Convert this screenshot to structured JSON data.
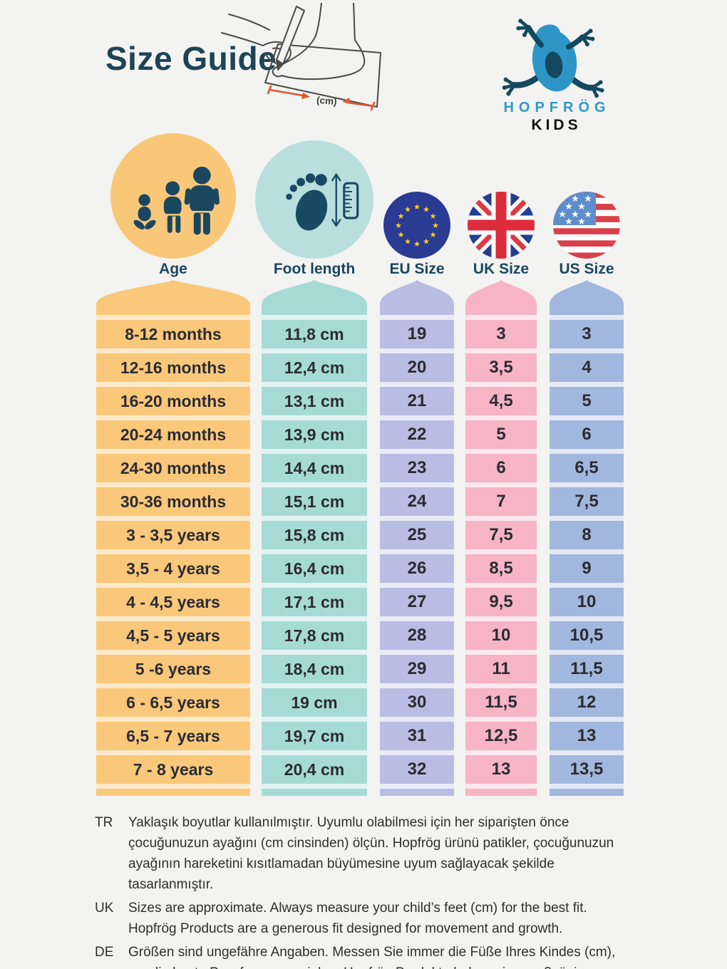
{
  "page": {
    "title": "Size Guide",
    "background": "#F3F3F1",
    "text_navy": "#1B4660"
  },
  "brand": {
    "name": "HOPFRÖG",
    "sub": "KIDS",
    "name_color": "#2E9AC7",
    "frog_icon": "frog-logo-icon"
  },
  "illustration": {
    "label": "(cm)",
    "accent_color": "#E2572F",
    "icon": "foot-tracing-illustration"
  },
  "columns": [
    {
      "id": "age",
      "label": "Age",
      "icon": "family-icon",
      "color": "#FAC87A",
      "tint": "#FCEACB",
      "icon_bg": "#F8C878"
    },
    {
      "id": "foot",
      "label": "Foot length",
      "icon": "foot-ruler-icon",
      "color": "#A6DBD5",
      "tint": "#E2F3F1",
      "icon_bg": "#B8DFDD"
    },
    {
      "id": "eu",
      "label": "EU Size",
      "icon": "eu-flag-icon",
      "color": "#B9BDE3",
      "tint": "#EAEBF7"
    },
    {
      "id": "uk",
      "label": "UK Size",
      "icon": "uk-flag-icon",
      "color": "#F6B4C6",
      "tint": "#FCE8EE"
    },
    {
      "id": "us",
      "label": "US Size",
      "icon": "us-flag-icon",
      "color": "#A2B7DD",
      "tint": "#E3E9F5"
    }
  ],
  "chart_data": {
    "type": "table",
    "title": "Size Guide",
    "columns": [
      "Age",
      "Foot length",
      "EU Size",
      "UK Size",
      "US Size"
    ],
    "rows": [
      [
        "8-12 months",
        "11,8 cm",
        "19",
        "3",
        "3"
      ],
      [
        "12-16 months",
        "12,4 cm",
        "20",
        "3,5",
        "4"
      ],
      [
        "16-20 months",
        "13,1 cm",
        "21",
        "4,5",
        "5"
      ],
      [
        "20-24 months",
        "13,9 cm",
        "22",
        "5",
        "6"
      ],
      [
        "24-30 months",
        "14,4 cm",
        "23",
        "6",
        "6,5"
      ],
      [
        "30-36 months",
        "15,1 cm",
        "24",
        "7",
        "7,5"
      ],
      [
        "3 - 3,5 years",
        "15,8 cm",
        "25",
        "7,5",
        "8"
      ],
      [
        "3,5 - 4 years",
        "16,4 cm",
        "26",
        "8,5",
        "9"
      ],
      [
        "4 - 4,5 years",
        "17,1 cm",
        "27",
        "9,5",
        "10"
      ],
      [
        "4,5 - 5 years",
        "17,8 cm",
        "28",
        "10",
        "10,5"
      ],
      [
        "5 -6 years",
        "18,4 cm",
        "29",
        "11",
        "11,5"
      ],
      [
        "6 - 6,5 years",
        "19 cm",
        "30",
        "11,5",
        "12"
      ],
      [
        "6,5 - 7 years",
        "19,7 cm",
        "31",
        "12,5",
        "13"
      ],
      [
        "7 - 8 years",
        "20,4 cm",
        "32",
        "13",
        "13,5"
      ]
    ]
  },
  "footnotes": [
    {
      "label": "TR",
      "text": "Yaklaşık boyutlar kullanılmıştır. Uyumlu olabilmesi için her siparişten önce çocuğunuzun ayağını (cm cinsinden) ölçün. Hopfrög ürünü patikler, çocuğunuzun ayağının hareketini kısıtlamadan büyümesine uyum sağlayacak şekilde tasarlanmıştır."
    },
    {
      "label": "UK",
      "text": "Sizes are approximate. Always measure your child’s feet (cm) for the best fit. Hopfrög Products are a generous fit designed for movement and growth."
    },
    {
      "label": "DE",
      "text": "Größen sind ungefähre Angaben. Messen Sie immer die Füße Ihres Kindes (cm), um die beste Passform zu erzielen. Hopfrög Produkte haben eine großzügige Passform, die auf Bewegung und Wachstum ausgelegt ist."
    }
  ]
}
